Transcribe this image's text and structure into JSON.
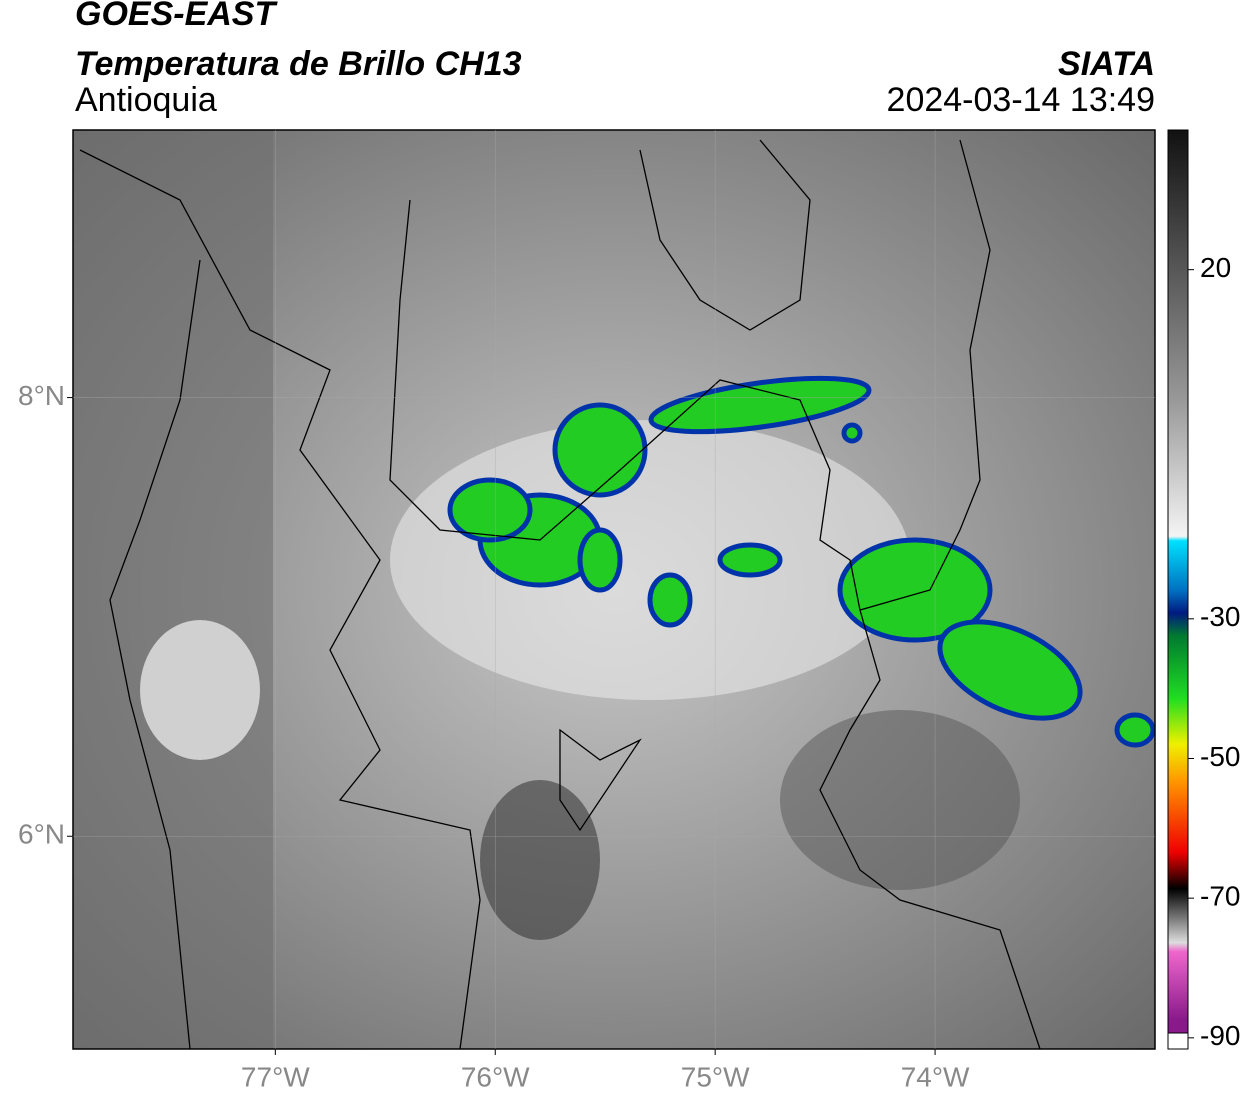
{
  "chart_data": {
    "type": "map",
    "title": "GOES-EAST",
    "subtitle": "Temperatura de Brillo CH13",
    "region": "Antioquia",
    "source": "SIATA",
    "timestamp": "2024-03-14 13:49",
    "xlim": [
      -77.92,
      -73.0
    ],
    "ylim": [
      5.03,
      9.22
    ],
    "xticks": [
      {
        "value": -77,
        "label": "77°W"
      },
      {
        "value": -76,
        "label": "76°W"
      },
      {
        "value": -75,
        "label": "75°W"
      },
      {
        "value": -74,
        "label": "74°W"
      }
    ],
    "yticks": [
      {
        "value": 6,
        "label": "6°N"
      },
      {
        "value": 8,
        "label": "8°N"
      }
    ],
    "grid": true,
    "colorbar": {
      "lim": [
        -91.6,
        40
      ],
      "ticks": [
        20,
        -30,
        -50,
        -70,
        -90
      ]
    }
  }
}
